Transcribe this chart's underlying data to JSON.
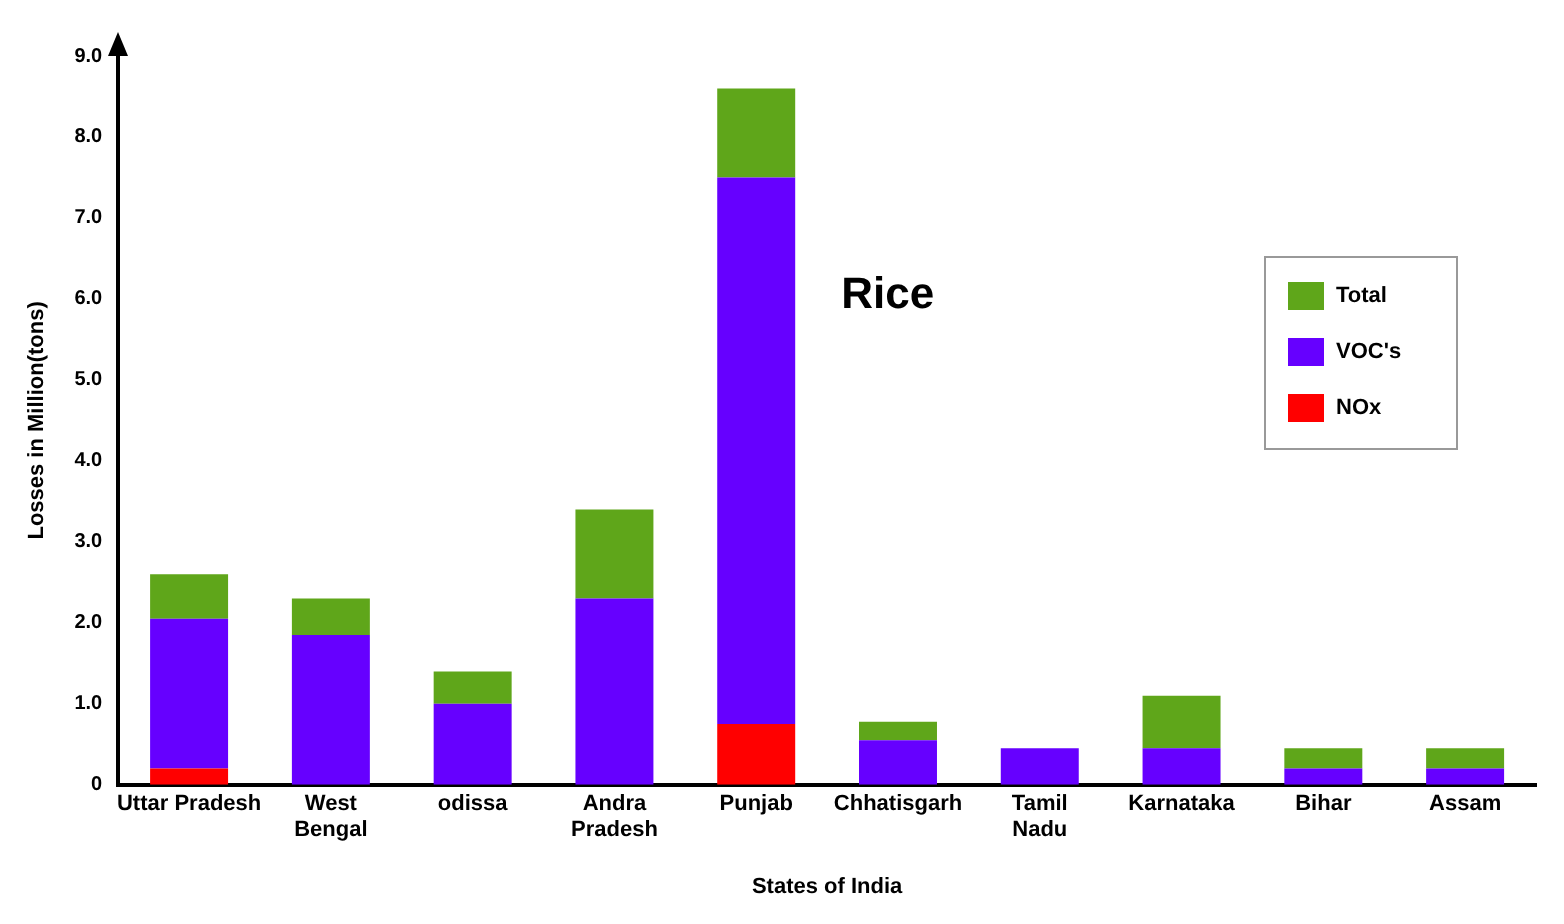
{
  "chart_data": {
    "type": "bar",
    "title": "Rice",
    "xlabel": "States of India",
    "ylabel": "Losses in Million(tons)",
    "categories": [
      "Uttar Pradesh",
      "West Bengal",
      "odissa",
      "Andra Pradesh",
      "Punjab",
      "Chhatisgarh",
      "Tamil Nadu",
      "Karnataka",
      "Bihar",
      "Assam"
    ],
    "series": [
      {
        "name": "NOx",
        "color": "#ff0000",
        "values": [
          0.2,
          0,
          0,
          0,
          0.75,
          0,
          0,
          0,
          0,
          0
        ]
      },
      {
        "name": "VOC's",
        "color": "#6600ff",
        "values": [
          1.85,
          1.85,
          1.0,
          2.3,
          6.75,
          0.55,
          0.45,
          0.45,
          0.2,
          0.2
        ]
      },
      {
        "name": "Total",
        "color": "#5fa61a",
        "values": [
          0.55,
          0.45,
          0.4,
          1.1,
          1.1,
          0.23,
          0,
          0.65,
          0.25,
          0.25
        ]
      }
    ],
    "stacked": true,
    "ylim": [
      0,
      9
    ],
    "yticks": [
      {
        "value": 0,
        "label": "0"
      },
      {
        "value": 1,
        "label": "1.0"
      },
      {
        "value": 2,
        "label": "2.0"
      },
      {
        "value": 3,
        "label": "3.0"
      },
      {
        "value": 4,
        "label": "4.0"
      },
      {
        "value": 5,
        "label": "5.0"
      },
      {
        "value": 6,
        "label": "6.0"
      },
      {
        "value": 7,
        "label": "7.0"
      },
      {
        "value": 8,
        "label": "8.0"
      },
      {
        "value": 9,
        "label": "9.0"
      }
    ],
    "grid": false,
    "legend": "right"
  }
}
